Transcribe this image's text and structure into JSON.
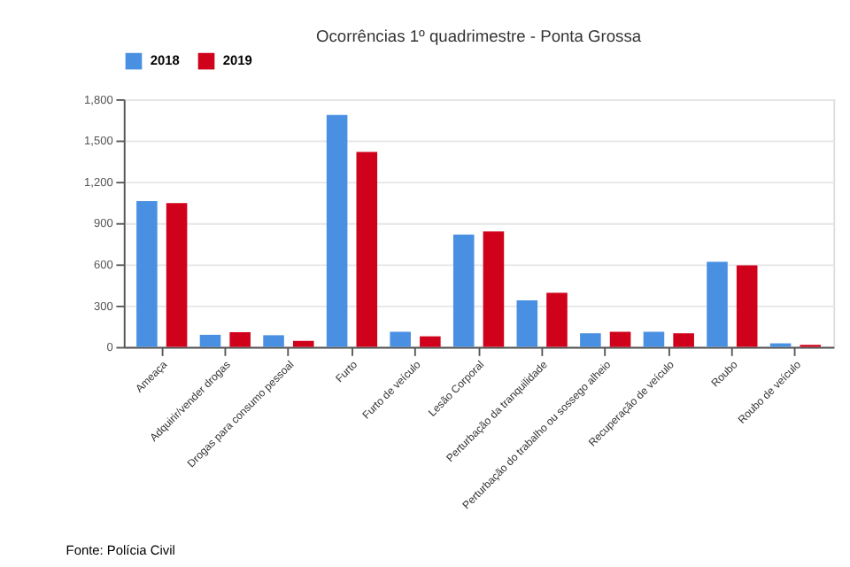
{
  "chart_data": {
    "type": "bar",
    "title": "Ocorrências 1º quadrimestre - Ponta Grossa",
    "categories": [
      "Ameaça",
      "Adquirir/vender drogas",
      "Drogas para consumo pessoal",
      "Furto",
      "Furto de veículo",
      "Lesão Corporal",
      "Perturbação da tranquilidade",
      "Perturbação do trabalho ou sossego alheio",
      "Recuperação de veículo",
      "Roubo",
      "Roubo de veículo"
    ],
    "series": [
      {
        "name": "2018",
        "color": "#4a90e2",
        "values": [
          1060,
          88,
          85,
          1686,
          110,
          817,
          339,
          99,
          110,
          618,
          26
        ]
      },
      {
        "name": "2019",
        "color": "#d0021b",
        "values": [
          1045,
          107,
          44,
          1417,
          77,
          839,
          394,
          110,
          99,
          593,
          15
        ]
      }
    ],
    "ylim": [
      0,
      1800
    ],
    "yticks": [
      {
        "value": 0,
        "label": "0"
      },
      {
        "value": 300,
        "label": "300"
      },
      {
        "value": 600,
        "label": "600"
      },
      {
        "value": 900,
        "label": "900"
      },
      {
        "value": 1200,
        "label": "1,200"
      },
      {
        "value": 1500,
        "label": "1,500"
      },
      {
        "value": 1800,
        "label": "1,800"
      }
    ],
    "grid": "y",
    "legend": "top",
    "annotations": [
      "Fonte: Polícia Civil"
    ]
  }
}
